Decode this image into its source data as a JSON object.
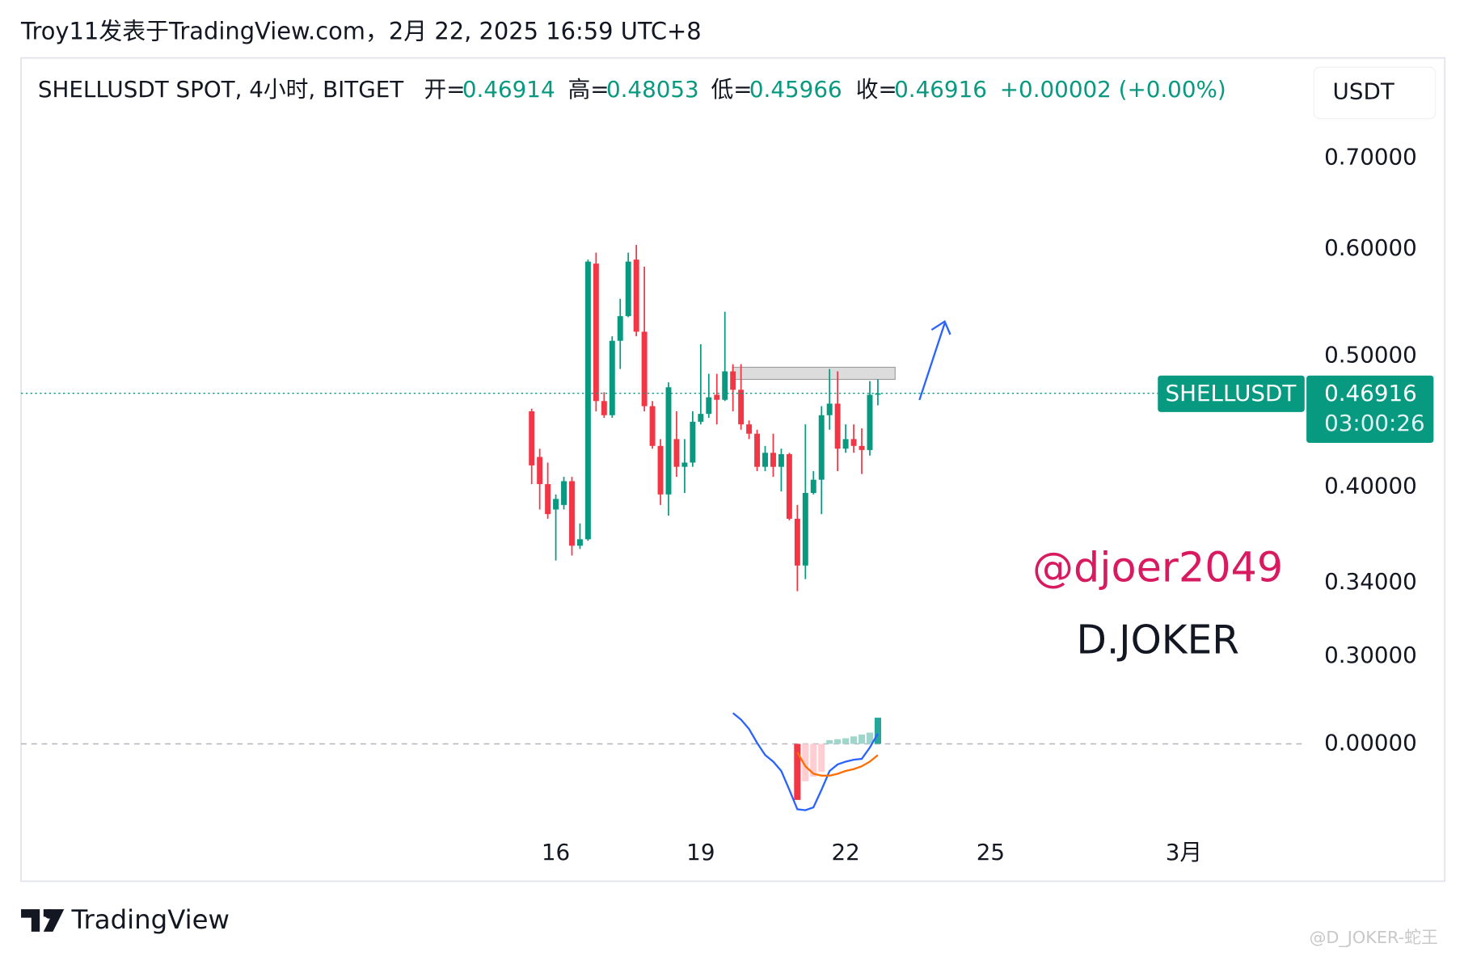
{
  "header": "Troy11发表于TradingView.com，2月 22, 2025 16:59 UTC+8",
  "chart_data": [
    {
      "type": "candlestick",
      "symbol_label": "SHELLUSDT SPOT, 4小时, BITGET",
      "ohlc_labels": [
        "开=",
        "高=",
        "低=",
        "收="
      ],
      "change_label": "+0.00002 (+0.00%)",
      "currency": "USDT",
      "countdown": "03:00:26",
      "x": [
        15.5,
        15.6667,
        15.8333,
        16,
        16.1667,
        16.3333,
        16.5,
        16.6667,
        16.8333,
        17,
        17.1667,
        17.3333,
        17.5,
        17.6667,
        17.8333,
        18,
        18.1667,
        18.3333,
        18.5,
        18.6667,
        18.8333,
        19,
        19.1667,
        19.3333,
        19.5,
        19.6667,
        19.8333,
        20,
        20.1667,
        20.3333,
        20.5,
        20.6667,
        20.8333,
        21,
        21.1667,
        21.3333,
        21.5,
        21.6667,
        21.8333,
        22,
        22.1667,
        22.3333,
        22.5,
        22.6667
      ],
      "xlim": [
        4.93,
        31.5
      ],
      "xticks": [
        16,
        19,
        22,
        25,
        {
          "value": 29,
          "label": "3月"
        }
      ],
      "series": [
        {
          "name": "SHELLUSDT",
          "up_color": "#089981",
          "down_color": "#f23645",
          "open": [
            0.455,
            0.421,
            0.402,
            0.385,
            0.388,
            0.404,
            0.362,
            0.366,
            0.585,
            0.463,
            0.452,
            0.513,
            0.535,
            0.589,
            0.521,
            0.459,
            0.429,
            0.395,
            0.434,
            0.414,
            0.417,
            0.447,
            0.453,
            0.468,
            0.464,
            0.487,
            0.472,
            0.445,
            0.438,
            0.414,
            0.424,
            0.414,
            0.423,
            0.379,
            0.35,
            0.396,
            0.405,
            0.452,
            0.461,
            0.427,
            0.434,
            0.429,
            0.426,
            0.46914
          ],
          "high": [
            0.457,
            0.427,
            0.417,
            0.395,
            0.407,
            0.407,
            0.376,
            0.589,
            0.596,
            0.47,
            0.517,
            0.551,
            0.596,
            0.604,
            0.582,
            0.463,
            0.434,
            0.478,
            0.455,
            0.434,
            0.455,
            0.51,
            0.485,
            0.485,
            0.539,
            0.493,
            0.493,
            0.448,
            0.441,
            0.429,
            0.438,
            0.427,
            0.424,
            0.388,
            0.445,
            0.411,
            0.459,
            0.489,
            0.487,
            0.445,
            0.445,
            0.442,
            0.479,
            0.48053
          ],
          "low": [
            0.402,
            0.385,
            0.379,
            0.353,
            0.385,
            0.356,
            0.36,
            0.365,
            0.455,
            0.45,
            0.45,
            0.489,
            0.534,
            0.517,
            0.455,
            0.427,
            0.388,
            0.381,
            0.407,
            0.396,
            0.414,
            0.445,
            0.45,
            0.445,
            0.463,
            0.455,
            0.441,
            0.434,
            0.411,
            0.411,
            0.407,
            0.397,
            0.378,
            0.335,
            0.342,
            0.395,
            0.382,
            0.441,
            0.411,
            0.424,
            0.424,
            0.409,
            0.422,
            0.45966
          ],
          "close": [
            0.415,
            0.402,
            0.382,
            0.392,
            0.404,
            0.362,
            0.366,
            0.587,
            0.463,
            0.452,
            0.513,
            0.535,
            0.587,
            0.521,
            0.459,
            0.429,
            0.395,
            0.474,
            0.414,
            0.417,
            0.447,
            0.453,
            0.466,
            0.464,
            0.487,
            0.472,
            0.445,
            0.438,
            0.414,
            0.424,
            0.414,
            0.423,
            0.379,
            0.35,
            0.396,
            0.405,
            0.452,
            0.461,
            0.427,
            0.434,
            0.429,
            0.426,
            0.468,
            0.46916
          ]
        }
      ],
      "ylim": [
        0.287,
        0.745
      ],
      "log_scale": true,
      "yticks": [
        {
          "value": 0.7,
          "label": "0.70000"
        },
        {
          "value": 0.6,
          "label": "0.60000"
        },
        {
          "value": 0.5,
          "label": "0.50000"
        },
        {
          "value": 0.4,
          "label": "0.40000"
        },
        {
          "value": 0.34,
          "label": "0.34000"
        },
        {
          "value": 0.3,
          "label": "0.30000"
        }
      ]
    },
    {
      "type": "macd",
      "ylim": [
        -0.0336,
        0.0164
      ],
      "yticks": [
        {
          "value": 0,
          "label": "0.00000"
        }
      ],
      "histogram": {
        "values": [
          null,
          null,
          null,
          null,
          null,
          null,
          null,
          null,
          null,
          null,
          null,
          null,
          null,
          null,
          null,
          null,
          null,
          null,
          null,
          null,
          null,
          null,
          null,
          null,
          null,
          null,
          null,
          null,
          null,
          null,
          null,
          null,
          null,
          -0.024,
          -0.016,
          -0.014,
          -0.012,
          0.0016,
          0.002,
          0.0024,
          0.0032,
          0.004,
          0.0048,
          0.0112
        ],
        "colors": [
          null,
          null,
          null,
          null,
          null,
          null,
          null,
          null,
          null,
          null,
          null,
          null,
          null,
          null,
          null,
          null,
          null,
          null,
          null,
          null,
          null,
          null,
          null,
          null,
          null,
          null,
          null,
          null,
          null,
          null,
          null,
          null,
          null,
          "#f23645",
          "#ffcdd2",
          "#ffcdd2",
          "#ffcdd2",
          "#9fd6cc",
          "#9fd6cc",
          "#9fd6cc",
          "#9fd6cc",
          "#9fd6cc",
          "#9fd6cc",
          "#26a69a"
        ]
      },
      "series": [
        {
          "color": "#2962ff",
          "values": [
            null,
            null,
            null,
            null,
            null,
            null,
            null,
            null,
            null,
            null,
            null,
            null,
            null,
            null,
            null,
            null,
            null,
            null,
            null,
            null,
            null,
            null,
            null,
            null,
            null,
            0.0132,
            0.0104,
            0.0064,
            0.0004,
            -0.0048,
            -0.0076,
            -0.0116,
            -0.0196,
            -0.028,
            -0.0284,
            -0.0272,
            -0.0196,
            -0.0116,
            -0.0088,
            -0.0076,
            -0.0068,
            -0.0064,
            -0.0016,
            0.0044
          ]
        },
        {
          "color": "#ff6d00",
          "values": [
            null,
            null,
            null,
            null,
            null,
            null,
            null,
            null,
            null,
            null,
            null,
            null,
            null,
            null,
            null,
            null,
            null,
            null,
            null,
            null,
            null,
            null,
            null,
            null,
            null,
            null,
            null,
            null,
            null,
            null,
            null,
            null,
            null,
            -0.0036,
            -0.0096,
            -0.0128,
            -0.0136,
            -0.0136,
            -0.0128,
            -0.0116,
            -0.0108,
            -0.0096,
            -0.0076,
            -0.0048
          ]
        }
      ]
    }
  ],
  "watermarks": [
    "@djoer2049",
    "D.JOKER"
  ],
  "footer": {
    "brand": "TradingView",
    "credit": "@D_JOKER-蛇王"
  }
}
